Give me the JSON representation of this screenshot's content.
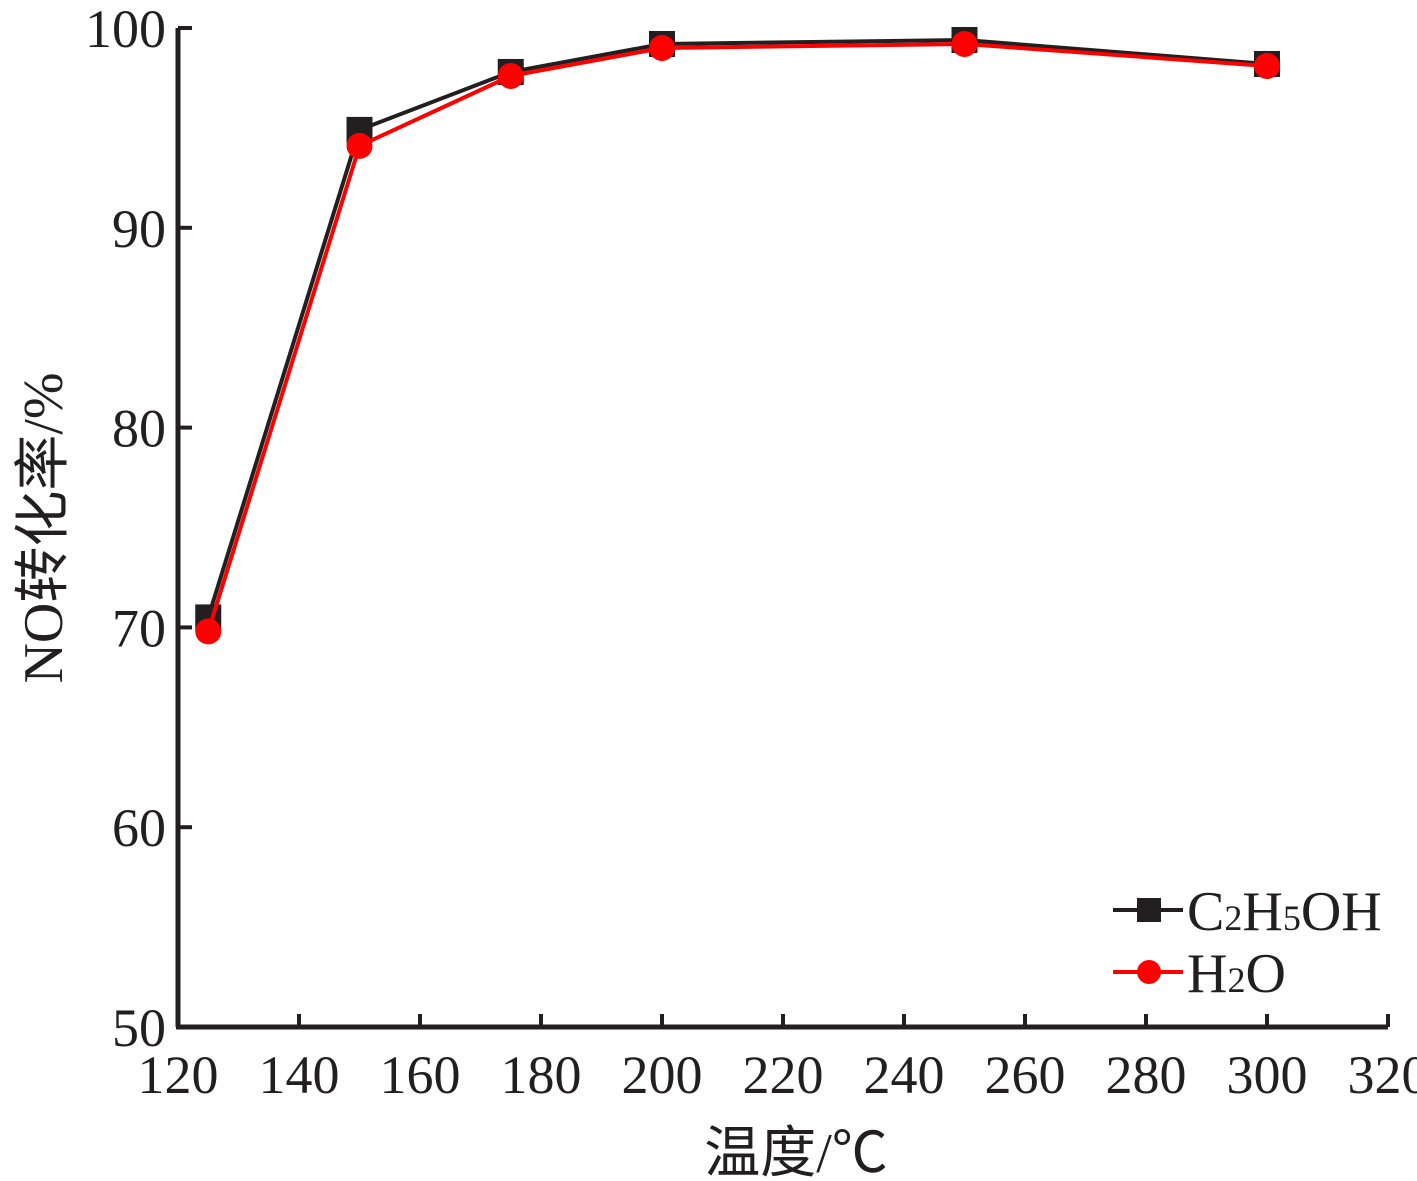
{
  "chart_data": {
    "type": "line",
    "title": "",
    "xlabel": "温度/℃",
    "ylabel": "NO转化率/%",
    "xlim": [
      120,
      320
    ],
    "ylim": [
      50,
      100
    ],
    "x_ticks": [
      120,
      140,
      160,
      180,
      200,
      220,
      240,
      260,
      280,
      300,
      320
    ],
    "y_ticks": [
      50,
      60,
      70,
      80,
      90,
      100
    ],
    "grid": false,
    "legend_position": "bottom-right",
    "series": [
      {
        "name": "C2H5OH",
        "name_parts": [
          "C",
          "2",
          "H",
          "5",
          "OH"
        ],
        "marker": "square",
        "color": "#231f20",
        "x": [
          125,
          150,
          175,
          200,
          250,
          300
        ],
        "y": [
          70.5,
          94.9,
          97.8,
          99.2,
          99.4,
          98.2
        ]
      },
      {
        "name": "H2O",
        "name_parts": [
          "H",
          "2",
          "O"
        ],
        "marker": "circle",
        "color": "#ff0000",
        "x": [
          125,
          150,
          175,
          200,
          250,
          300
        ],
        "y": [
          69.8,
          94.1,
          97.6,
          99.0,
          99.2,
          98.1
        ]
      }
    ]
  }
}
